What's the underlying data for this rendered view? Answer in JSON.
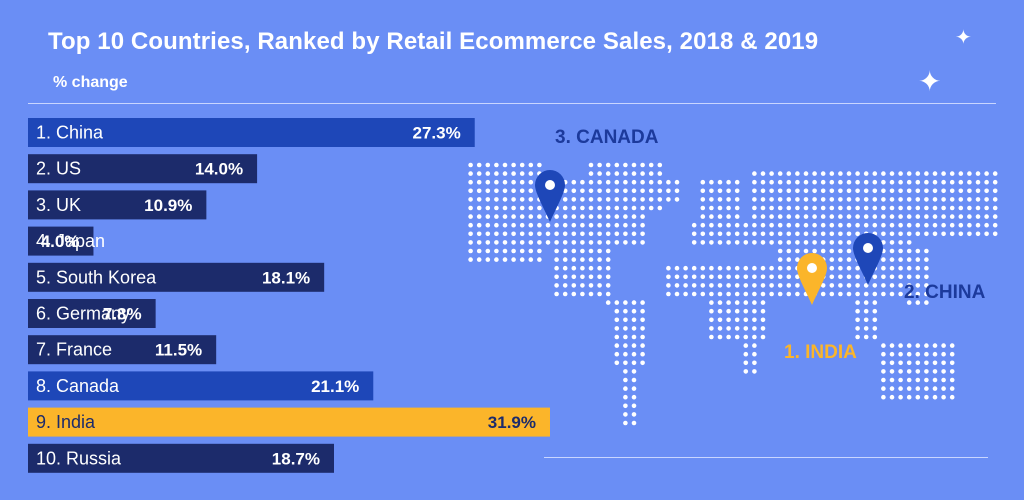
{
  "title": "Top 10 Countries, Ranked by Retail Ecommerce Sales, 2018 & 2019",
  "subtitle": "% change",
  "icons": [
    "sparkle-icon",
    "map-pin-icon"
  ],
  "colors": {
    "background": "#6a8ef5",
    "bar_dark": "#1c2b6b",
    "bar_blue": "#1e47b8",
    "bar_highlight": "#fbb52a",
    "map_dots": "#ffffff",
    "label_dark": "#1c3a9c",
    "label_highlight": "#fbb52a"
  },
  "chart_data": {
    "type": "bar",
    "orientation": "horizontal",
    "title": "Top 10 Countries, Ranked by Retail Ecommerce Sales, 2018 & 2019",
    "subtitle": "% change",
    "unit": "%",
    "categories": [
      "1. China",
      "2. US",
      "3. UK",
      "4. Japan",
      "5. South Korea",
      "6. Germany",
      "7. France",
      "8. Canada",
      "9. India",
      "10. Russia"
    ],
    "values": [
      27.3,
      14.0,
      10.9,
      4.0,
      18.1,
      7.8,
      11.5,
      21.1,
      31.9,
      18.7
    ],
    "value_labels": [
      "27.3%",
      "14.0%",
      "10.9%",
      "4.0%",
      "18.1%",
      "7.8%",
      "11.5%",
      "21.1%",
      "31.9%",
      "18.7%"
    ],
    "bar_styles": [
      "blue",
      "dark",
      "dark",
      "dark",
      "dark",
      "dark",
      "dark",
      "blue",
      "highlight",
      "dark"
    ],
    "grid": false
  },
  "map": {
    "type": "dotted-world-map",
    "markers": [
      {
        "label": "3. CANADA",
        "style": "dark"
      },
      {
        "label": "2. CHINA",
        "style": "dark"
      },
      {
        "label": "1. INDIA",
        "style": "highlight"
      }
    ]
  }
}
